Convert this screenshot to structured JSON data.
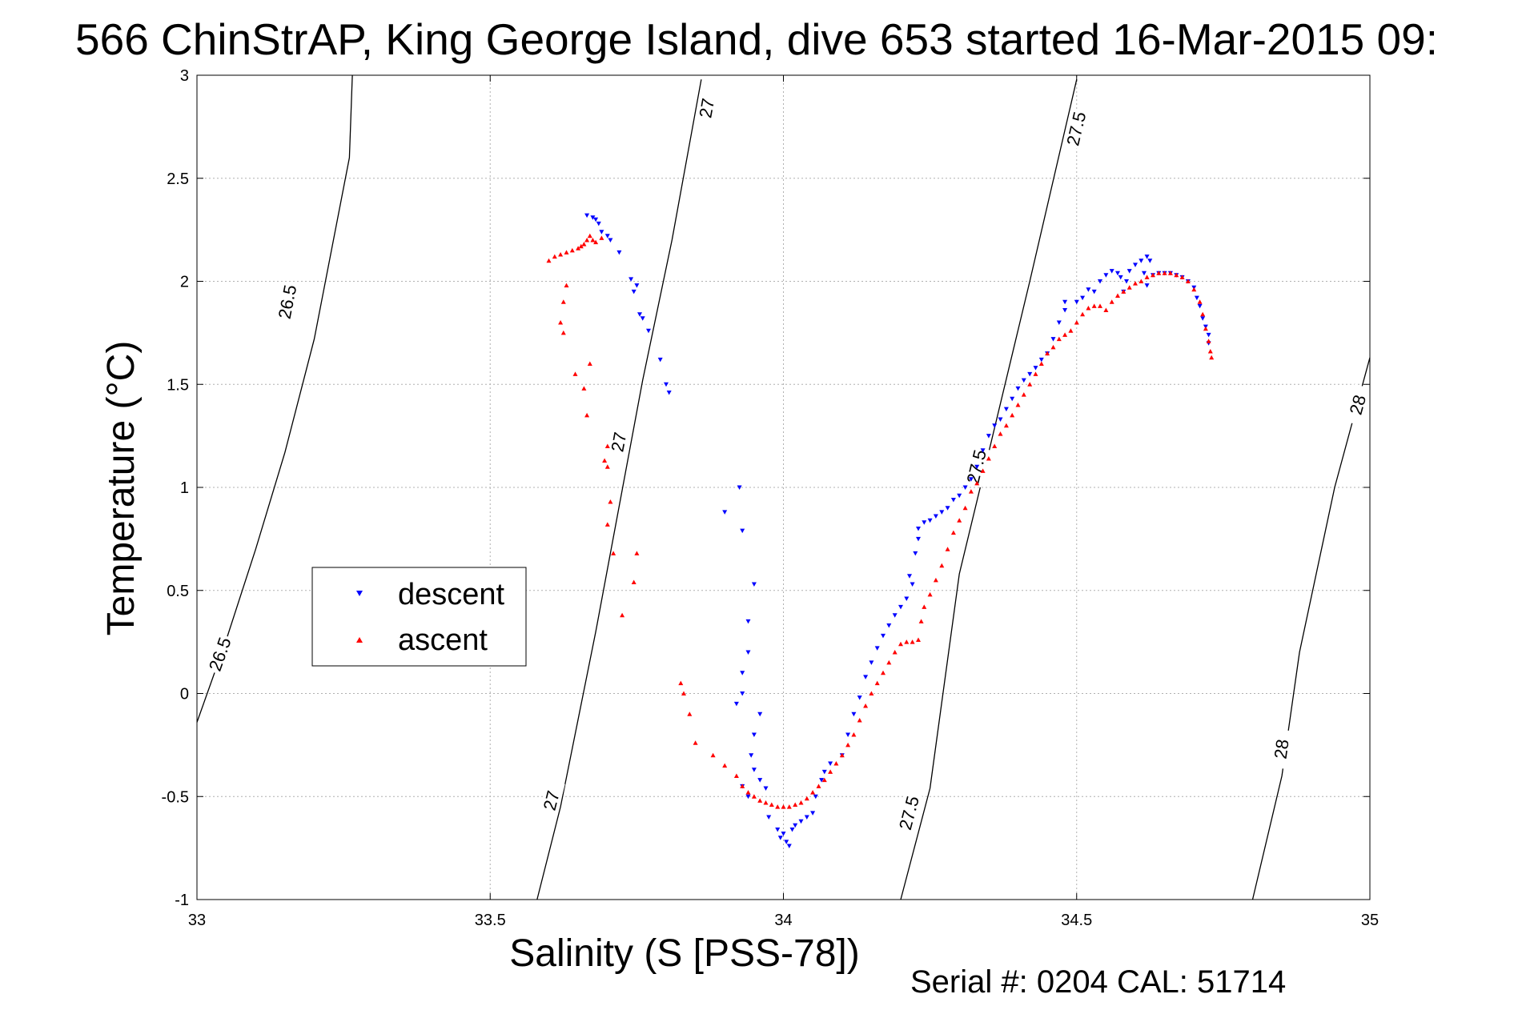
{
  "chart_data": {
    "type": "scatter",
    "title": "566 ChinStrAP, King George Island, dive 653 started 16-Mar-2015 09:",
    "xlabel": "Salinity (S [PSS-78])",
    "ylabel": "Temperature (°C)",
    "xlim": [
      33,
      35
    ],
    "ylim": [
      -1,
      3
    ],
    "x_ticks": [
      "33",
      "33.5",
      "34",
      "34.5",
      "35"
    ],
    "y_ticks": [
      "-1",
      "-0.5",
      "0",
      "0.5",
      "1",
      "1.5",
      "2",
      "2.5",
      "3"
    ],
    "grid": true,
    "legend_position": "middle-left",
    "footer": "Serial #: 0204  CAL: 51714",
    "series": [
      {
        "name": "descent",
        "color": "#0000ff",
        "marker": "triangle-down",
        "points": [
          [
            33.665,
            2.32
          ],
          [
            33.675,
            2.31
          ],
          [
            33.68,
            2.3
          ],
          [
            33.685,
            2.28
          ],
          [
            33.69,
            2.24
          ],
          [
            33.7,
            2.22
          ],
          [
            33.705,
            2.2
          ],
          [
            33.72,
            2.14
          ],
          [
            33.74,
            2.01
          ],
          [
            33.75,
            1.98
          ],
          [
            33.745,
            1.95
          ],
          [
            33.755,
            1.84
          ],
          [
            33.76,
            1.82
          ],
          [
            33.77,
            1.76
          ],
          [
            33.79,
            1.62
          ],
          [
            33.8,
            1.5
          ],
          [
            33.805,
            1.46
          ],
          [
            33.9,
            0.88
          ],
          [
            33.93,
            0.79
          ],
          [
            33.925,
            1.0
          ],
          [
            33.94,
            0.35
          ],
          [
            33.95,
            0.53
          ],
          [
            33.93,
            0.1
          ],
          [
            33.92,
            -0.05
          ],
          [
            33.94,
            0.2
          ],
          [
            33.93,
            0.0
          ],
          [
            33.95,
            -0.2
          ],
          [
            33.96,
            -0.1
          ],
          [
            33.945,
            -0.3
          ],
          [
            33.93,
            -0.45
          ],
          [
            33.94,
            -0.5
          ],
          [
            33.95,
            -0.37
          ],
          [
            33.96,
            -0.42
          ],
          [
            33.97,
            -0.46
          ],
          [
            33.975,
            -0.6
          ],
          [
            33.99,
            -0.66
          ],
          [
            33.995,
            -0.7
          ],
          [
            34.0,
            -0.68
          ],
          [
            34.005,
            -0.72
          ],
          [
            34.01,
            -0.74
          ],
          [
            34.015,
            -0.66
          ],
          [
            34.02,
            -0.64
          ],
          [
            34.03,
            -0.62
          ],
          [
            34.04,
            -0.6
          ],
          [
            34.05,
            -0.58
          ],
          [
            34.055,
            -0.5
          ],
          [
            34.065,
            -0.42
          ],
          [
            34.07,
            -0.38
          ],
          [
            34.08,
            -0.34
          ],
          [
            34.1,
            -0.3
          ],
          [
            34.11,
            -0.2
          ],
          [
            34.12,
            -0.1
          ],
          [
            34.13,
            -0.02
          ],
          [
            34.14,
            0.08
          ],
          [
            34.15,
            0.15
          ],
          [
            34.16,
            0.22
          ],
          [
            34.17,
            0.28
          ],
          [
            34.18,
            0.33
          ],
          [
            34.19,
            0.38
          ],
          [
            34.2,
            0.42
          ],
          [
            34.21,
            0.46
          ],
          [
            34.22,
            0.53
          ],
          [
            34.215,
            0.57
          ],
          [
            34.225,
            0.68
          ],
          [
            34.23,
            0.75
          ],
          [
            34.23,
            0.8
          ],
          [
            34.24,
            0.83
          ],
          [
            34.25,
            0.84
          ],
          [
            34.26,
            0.86
          ],
          [
            34.27,
            0.88
          ],
          [
            34.28,
            0.9
          ],
          [
            34.29,
            0.94
          ],
          [
            34.3,
            0.96
          ],
          [
            34.31,
            1.0
          ],
          [
            34.32,
            1.04
          ],
          [
            34.33,
            1.1
          ],
          [
            34.34,
            1.18
          ],
          [
            34.35,
            1.25
          ],
          [
            34.36,
            1.3
          ],
          [
            34.37,
            1.33
          ],
          [
            34.38,
            1.38
          ],
          [
            34.39,
            1.43
          ],
          [
            34.4,
            1.48
          ],
          [
            34.41,
            1.52
          ],
          [
            34.42,
            1.55
          ],
          [
            34.43,
            1.58
          ],
          [
            34.44,
            1.62
          ],
          [
            34.45,
            1.65
          ],
          [
            34.46,
            1.72
          ],
          [
            34.47,
            1.8
          ],
          [
            34.48,
            1.86
          ],
          [
            34.48,
            1.9
          ],
          [
            34.5,
            1.9
          ],
          [
            34.51,
            1.92
          ],
          [
            34.52,
            1.96
          ],
          [
            34.53,
            1.95
          ],
          [
            34.54,
            2.0
          ],
          [
            34.55,
            2.03
          ],
          [
            34.56,
            2.05
          ],
          [
            34.57,
            2.04
          ],
          [
            34.575,
            2.02
          ],
          [
            34.58,
            1.95
          ],
          [
            34.585,
            2.0
          ],
          [
            34.59,
            2.05
          ],
          [
            34.6,
            2.08
          ],
          [
            34.61,
            2.1
          ],
          [
            34.62,
            2.12
          ],
          [
            34.625,
            2.1
          ],
          [
            34.615,
            2.04
          ],
          [
            34.62,
            1.98
          ],
          [
            34.63,
            2.03
          ],
          [
            34.64,
            2.04
          ],
          [
            34.65,
            2.04
          ],
          [
            34.66,
            2.04
          ],
          [
            34.67,
            2.03
          ],
          [
            34.68,
            2.02
          ],
          [
            34.69,
            2.0
          ],
          [
            34.7,
            1.97
          ],
          [
            34.705,
            1.92
          ],
          [
            34.71,
            1.88
          ],
          [
            34.715,
            1.82
          ],
          [
            34.72,
            1.78
          ],
          [
            34.725,
            1.74
          ],
          [
            34.725,
            1.7
          ]
        ]
      },
      {
        "name": "ascent",
        "color": "#ff0000",
        "marker": "triangle-up",
        "points": [
          [
            33.6,
            2.1
          ],
          [
            33.61,
            2.12
          ],
          [
            33.62,
            2.13
          ],
          [
            33.63,
            2.14
          ],
          [
            33.64,
            2.15
          ],
          [
            33.65,
            2.16
          ],
          [
            33.655,
            2.17
          ],
          [
            33.66,
            2.18
          ],
          [
            33.665,
            2.2
          ],
          [
            33.67,
            2.22
          ],
          [
            33.675,
            2.2
          ],
          [
            33.68,
            2.19
          ],
          [
            33.69,
            2.21
          ],
          [
            33.63,
            1.98
          ],
          [
            33.625,
            1.9
          ],
          [
            33.62,
            1.8
          ],
          [
            33.625,
            1.75
          ],
          [
            33.645,
            1.55
          ],
          [
            33.66,
            1.48
          ],
          [
            33.67,
            1.6
          ],
          [
            33.665,
            1.35
          ],
          [
            33.7,
            1.2
          ],
          [
            33.695,
            1.13
          ],
          [
            33.7,
            1.1
          ],
          [
            33.705,
            0.93
          ],
          [
            33.7,
            0.82
          ],
          [
            33.71,
            0.68
          ],
          [
            33.75,
            0.68
          ],
          [
            33.745,
            0.54
          ],
          [
            33.725,
            0.38
          ],
          [
            33.83,
            -0.0
          ],
          [
            33.825,
            0.05
          ],
          [
            33.84,
            -0.1
          ],
          [
            33.85,
            -0.24
          ],
          [
            33.88,
            -0.3
          ],
          [
            33.9,
            -0.35
          ],
          [
            33.92,
            -0.4
          ],
          [
            33.93,
            -0.45
          ],
          [
            33.94,
            -0.48
          ],
          [
            33.95,
            -0.5
          ],
          [
            33.96,
            -0.52
          ],
          [
            33.97,
            -0.53
          ],
          [
            33.98,
            -0.54
          ],
          [
            33.99,
            -0.55
          ],
          [
            34.0,
            -0.55
          ],
          [
            34.01,
            -0.55
          ],
          [
            34.02,
            -0.54
          ],
          [
            34.03,
            -0.53
          ],
          [
            34.04,
            -0.51
          ],
          [
            34.05,
            -0.48
          ],
          [
            34.06,
            -0.45
          ],
          [
            34.07,
            -0.42
          ],
          [
            34.08,
            -0.38
          ],
          [
            34.09,
            -0.34
          ],
          [
            34.1,
            -0.3
          ],
          [
            34.11,
            -0.25
          ],
          [
            34.12,
            -0.2
          ],
          [
            34.13,
            -0.13
          ],
          [
            34.14,
            -0.06
          ],
          [
            34.15,
            0.0
          ],
          [
            34.16,
            0.05
          ],
          [
            34.17,
            0.1
          ],
          [
            34.18,
            0.15
          ],
          [
            34.19,
            0.2
          ],
          [
            34.2,
            0.24
          ],
          [
            34.21,
            0.25
          ],
          [
            34.22,
            0.25
          ],
          [
            34.23,
            0.26
          ],
          [
            34.235,
            0.35
          ],
          [
            34.24,
            0.42
          ],
          [
            34.25,
            0.48
          ],
          [
            34.26,
            0.55
          ],
          [
            34.27,
            0.62
          ],
          [
            34.28,
            0.7
          ],
          [
            34.29,
            0.78
          ],
          [
            34.3,
            0.84
          ],
          [
            34.31,
            0.9
          ],
          [
            34.32,
            0.98
          ],
          [
            34.33,
            1.02
          ],
          [
            34.34,
            1.08
          ],
          [
            34.35,
            1.14
          ],
          [
            34.36,
            1.2
          ],
          [
            34.37,
            1.26
          ],
          [
            34.38,
            1.3
          ],
          [
            34.39,
            1.35
          ],
          [
            34.4,
            1.4
          ],
          [
            34.41,
            1.45
          ],
          [
            34.42,
            1.5
          ],
          [
            34.43,
            1.55
          ],
          [
            34.44,
            1.6
          ],
          [
            34.45,
            1.65
          ],
          [
            34.46,
            1.68
          ],
          [
            34.47,
            1.72
          ],
          [
            34.48,
            1.74
          ],
          [
            34.49,
            1.76
          ],
          [
            34.5,
            1.8
          ],
          [
            34.51,
            1.84
          ],
          [
            34.52,
            1.87
          ],
          [
            34.53,
            1.88
          ],
          [
            34.54,
            1.88
          ],
          [
            34.55,
            1.86
          ],
          [
            34.56,
            1.9
          ],
          [
            34.57,
            1.93
          ],
          [
            34.58,
            1.95
          ],
          [
            34.59,
            1.97
          ],
          [
            34.6,
            1.99
          ],
          [
            34.61,
            2.0
          ],
          [
            34.62,
            2.02
          ],
          [
            34.63,
            2.03
          ],
          [
            34.64,
            2.04
          ],
          [
            34.65,
            2.04
          ],
          [
            34.66,
            2.04
          ],
          [
            34.67,
            2.03
          ],
          [
            34.68,
            2.02
          ],
          [
            34.69,
            2.0
          ],
          [
            34.7,
            1.96
          ],
          [
            34.71,
            1.9
          ],
          [
            34.715,
            1.84
          ],
          [
            34.72,
            1.77
          ],
          [
            34.725,
            1.71
          ],
          [
            34.728,
            1.66
          ],
          [
            34.73,
            1.63
          ]
        ]
      }
    ],
    "density_contours": [
      {
        "label": "26.5",
        "points": [
          [
            33.0,
            -0.14
          ],
          [
            33.05,
            0.26
          ],
          [
            33.1,
            0.7
          ],
          [
            33.15,
            1.17
          ],
          [
            33.2,
            1.72
          ],
          [
            33.26,
            2.6
          ],
          [
            33.265,
            3.0
          ]
        ],
        "label_positions": [
          [
            33.04,
            0.19
          ],
          [
            33.155,
            1.9
          ]
        ]
      },
      {
        "label": "27",
        "points": [
          [
            33.58,
            -1.0
          ],
          [
            33.62,
            -0.55
          ],
          [
            33.68,
            0.3
          ],
          [
            33.72,
            0.91
          ],
          [
            33.76,
            1.52
          ],
          [
            33.81,
            2.2
          ],
          [
            33.86,
            2.98
          ]
        ],
        "label_positions": [
          [
            33.605,
            -0.52
          ],
          [
            33.72,
            1.22
          ],
          [
            33.87,
            2.84
          ]
        ]
      },
      {
        "label": "27.5",
        "points": [
          [
            34.2,
            -1.0
          ],
          [
            34.25,
            -0.46
          ],
          [
            34.3,
            0.58
          ],
          [
            34.35,
            1.17
          ],
          [
            34.42,
            2.0
          ],
          [
            34.5,
            2.98
          ]
        ],
        "label_positions": [
          [
            34.215,
            -0.58
          ],
          [
            34.33,
            1.1
          ],
          [
            34.5,
            2.74
          ]
        ]
      },
      {
        "label": "28",
        "points": [
          [
            34.8,
            -1.0
          ],
          [
            34.85,
            -0.4
          ],
          [
            34.88,
            0.2
          ],
          [
            34.94,
            1.0
          ],
          [
            35.0,
            1.63
          ]
        ],
        "label_positions": [
          [
            34.85,
            -0.27
          ],
          [
            34.98,
            1.4
          ]
        ]
      }
    ]
  },
  "legend": {
    "descent_label": "descent",
    "ascent_label": "ascent"
  }
}
